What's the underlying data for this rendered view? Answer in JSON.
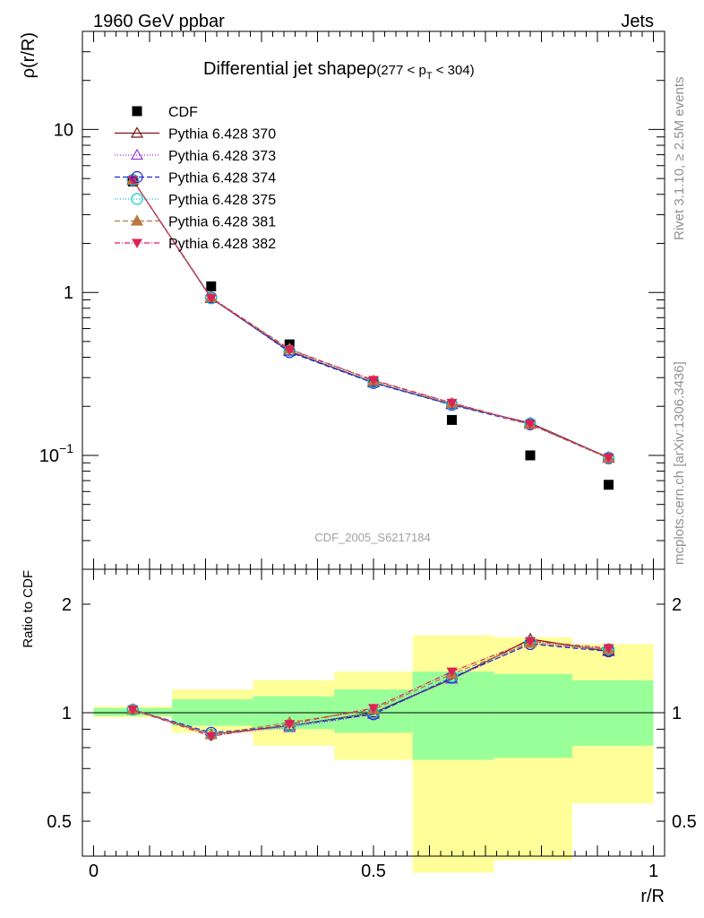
{
  "header": {
    "left": "1960 GeV ppbar",
    "right": "Jets"
  },
  "side_labels": {
    "version": "Rivet 3.1.10, ≥ 2.5M events",
    "source": "mcplots.cern.ch [arXiv:1306.3436]"
  },
  "watermark": "CDF_2005_S6217184",
  "chart_data": [
    {
      "type": "scatter",
      "title_main": "Differential jet shapeρ",
      "title_range": "(277 < p",
      "title_sub": "T",
      "title_range_end": " < 304)",
      "ylabel": "ρ(r/R)",
      "yscale": "log",
      "ylim": [
        0.02,
        40
      ],
      "xlim": [
        -0.02,
        1.02
      ],
      "yticks": [
        {
          "v": 0.1,
          "base": "10",
          "exp": "−1"
        },
        {
          "v": 1,
          "label": "1"
        },
        {
          "v": 10,
          "label": "10"
        }
      ],
      "x": [
        0.07,
        0.21,
        0.35,
        0.5,
        0.64,
        0.78,
        0.92
      ],
      "series": [
        {
          "name": "CDF",
          "marker": "square",
          "color": "#000000",
          "dash": "",
          "values": [
            4.8,
            1.09,
            0.48,
            0.28,
            0.165,
            0.1,
            0.066
          ]
        },
        {
          "name": "Pythia 6.428 370",
          "marker": "triangle-open",
          "color": "#7b1010",
          "dash": "",
          "values": [
            4.9,
            0.92,
            0.435,
            0.28,
            0.205,
            0.158,
            0.097
          ]
        },
        {
          "name": "Pythia 6.428 373",
          "marker": "triangle-open",
          "color": "#9933dd",
          "dash": "1,2",
          "values": [
            4.9,
            0.93,
            0.44,
            0.282,
            0.207,
            0.156,
            0.096
          ]
        },
        {
          "name": "Pythia 6.428 374",
          "marker": "circle-open",
          "color": "#2222dd",
          "dash": "6,3",
          "values": [
            4.9,
            0.93,
            0.43,
            0.278,
            0.204,
            0.155,
            0.096
          ]
        },
        {
          "name": "Pythia 6.428 375",
          "marker": "circle-open",
          "color": "#00cccc",
          "dash": "1,2",
          "values": [
            4.9,
            0.92,
            0.44,
            0.281,
            0.206,
            0.157,
            0.097
          ]
        },
        {
          "name": "Pythia 6.428 381",
          "marker": "triangle",
          "color": "#b87840",
          "dash": "6,3",
          "values": [
            4.9,
            0.93,
            0.45,
            0.287,
            0.209,
            0.155,
            0.096
          ]
        },
        {
          "name": "Pythia 6.428 382",
          "marker": "triangle-down",
          "color": "#dd2255",
          "dash": "6,2,1,2",
          "values": [
            4.9,
            0.92,
            0.445,
            0.29,
            0.21,
            0.156,
            0.097
          ]
        }
      ]
    },
    {
      "type": "scatter",
      "ylabel": "Ratio to CDF",
      "xlabel": "r/R",
      "yscale": "log",
      "ylim": [
        0.4,
        2.5
      ],
      "xlim": [
        -0.02,
        1.02
      ],
      "yticks": [
        {
          "v": 0.5,
          "label": "0.5"
        },
        {
          "v": 1,
          "label": "1"
        },
        {
          "v": 2,
          "label": "2"
        }
      ],
      "xticks": [
        {
          "v": 0,
          "label": "0"
        },
        {
          "v": 0.5,
          "label": "0.5"
        },
        {
          "v": 1,
          "label": "1"
        }
      ],
      "bands": [
        {
          "x0": 0.0,
          "x1": 0.14,
          "y_lo": 0.97,
          "y_hi": 1.04,
          "g_lo": 0.98,
          "g_hi": 1.03
        },
        {
          "x0": 0.14,
          "x1": 0.285,
          "y_lo": 0.88,
          "y_hi": 1.16,
          "g_lo": 0.92,
          "g_hi": 1.09
        },
        {
          "x0": 0.285,
          "x1": 0.43,
          "y_lo": 0.81,
          "y_hi": 1.23,
          "g_lo": 0.9,
          "g_hi": 1.11
        },
        {
          "x0": 0.43,
          "x1": 0.57,
          "y_lo": 0.74,
          "y_hi": 1.3,
          "g_lo": 0.88,
          "g_hi": 1.16
        },
        {
          "x0": 0.57,
          "x1": 0.715,
          "y_lo": 0.36,
          "y_hi": 1.64,
          "g_lo": 0.74,
          "g_hi": 1.3
        },
        {
          "x0": 0.715,
          "x1": 0.855,
          "y_lo": 0.39,
          "y_hi": 1.62,
          "g_lo": 0.75,
          "g_hi": 1.28
        },
        {
          "x0": 0.855,
          "x1": 1.0,
          "y_lo": 0.56,
          "y_hi": 1.55,
          "g_lo": 0.81,
          "g_hi": 1.23
        }
      ],
      "x": [
        0.07,
        0.21,
        0.35,
        0.5,
        0.64,
        0.78,
        0.92
      ],
      "series": [
        {
          "name": "Pythia 6.428 370",
          "values": [
            1.02,
            0.87,
            0.92,
            1.0,
            1.24,
            1.6,
            1.48
          ]
        },
        {
          "name": "Pythia 6.428 373",
          "values": [
            1.02,
            0.87,
            0.91,
            0.99,
            1.24,
            1.56,
            1.49
          ]
        },
        {
          "name": "Pythia 6.428 374",
          "values": [
            1.02,
            0.88,
            0.92,
            0.99,
            1.25,
            1.55,
            1.48
          ]
        },
        {
          "name": "Pythia 6.428 375",
          "values": [
            1.02,
            0.87,
            0.92,
            1.0,
            1.26,
            1.57,
            1.5
          ]
        },
        {
          "name": "Pythia 6.428 381",
          "values": [
            1.02,
            0.87,
            0.94,
            1.02,
            1.28,
            1.56,
            1.5
          ]
        },
        {
          "name": "Pythia 6.428 382",
          "values": [
            1.02,
            0.86,
            0.93,
            1.03,
            1.3,
            1.58,
            1.51
          ]
        }
      ]
    }
  ]
}
